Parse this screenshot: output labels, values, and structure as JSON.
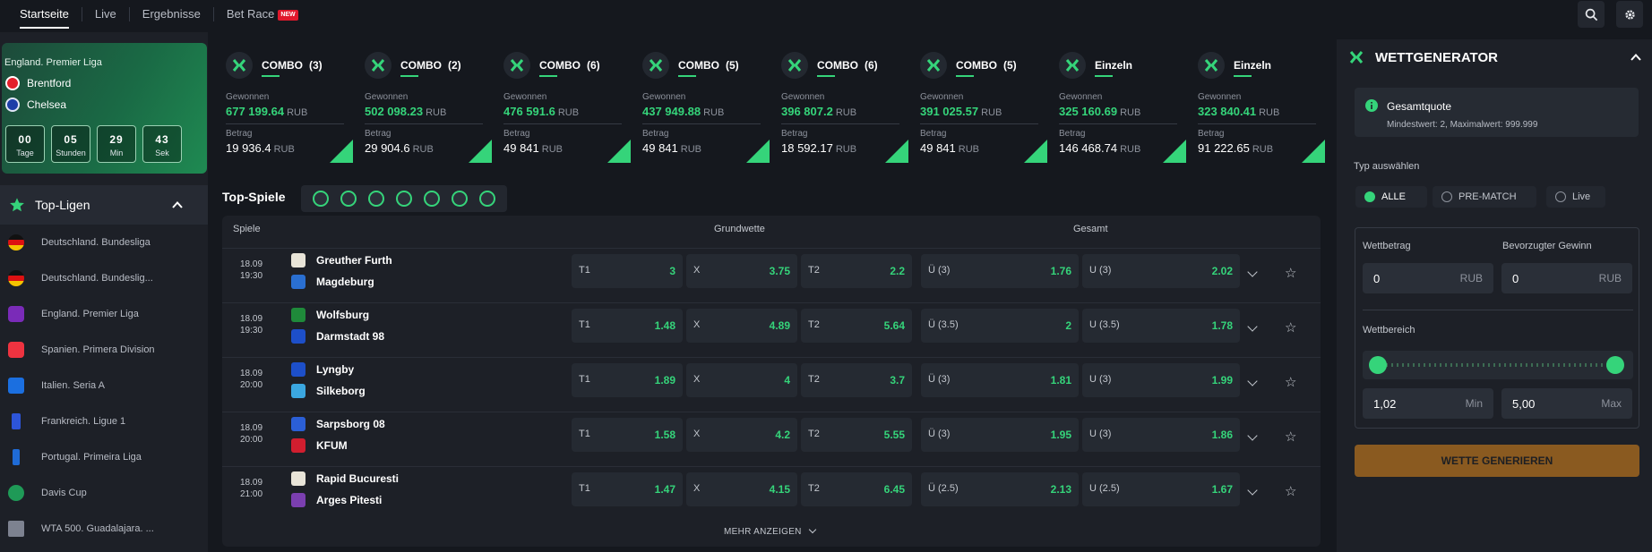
{
  "nav": {
    "items": [
      "Startseite",
      "Live",
      "Ergebnisse",
      "Bet Race"
    ],
    "badge": "NEW"
  },
  "featured": {
    "league": "England. Premier Liga",
    "team1": "Brentford",
    "team2": "Chelsea",
    "countdown": [
      {
        "num": "00",
        "label": "Tage"
      },
      {
        "num": "05",
        "label": "Stunden"
      },
      {
        "num": "29",
        "label": "Min"
      },
      {
        "num": "43",
        "label": "Sek"
      }
    ]
  },
  "topligen": {
    "title": "Top-Ligen",
    "leagues": [
      "Deutschland. Bundesliga",
      "Deutschland. Bundeslig...",
      "England. Premier Liga",
      "Spanien. Primera Division",
      "Italien. Seria A",
      "Frankreich. Ligue 1",
      "Portugal. Primeira Liga",
      "Davis Cup",
      "WTA 500. Guadalajara. ..."
    ]
  },
  "combos": [
    {
      "title": "COMBO",
      "count": "(3)",
      "won_label": "Gewonnen",
      "won": "677 199.64",
      "bet_label": "Betrag",
      "bet": "19 936.4",
      "cur": "RUB"
    },
    {
      "title": "COMBO",
      "count": "(2)",
      "won_label": "Gewonnen",
      "won": "502 098.23",
      "bet_label": "Betrag",
      "bet": "29 904.6",
      "cur": "RUB"
    },
    {
      "title": "COMBO",
      "count": "(6)",
      "won_label": "Gewonnen",
      "won": "476 591.6",
      "bet_label": "Betrag",
      "bet": "49 841",
      "cur": "RUB"
    },
    {
      "title": "COMBO",
      "count": "(5)",
      "won_label": "Gewonnen",
      "won": "437 949.88",
      "bet_label": "Betrag",
      "bet": "49 841",
      "cur": "RUB"
    },
    {
      "title": "COMBO",
      "count": "(6)",
      "won_label": "Gewonnen",
      "won": "396 807.2",
      "bet_label": "Betrag",
      "bet": "18 592.17",
      "cur": "RUB"
    },
    {
      "title": "COMBO",
      "count": "(5)",
      "won_label": "Gewonnen",
      "won": "391 025.57",
      "bet_label": "Betrag",
      "bet": "49 841",
      "cur": "RUB"
    },
    {
      "title": "Einzeln",
      "count": "",
      "won_label": "Gewonnen",
      "won": "325 160.69",
      "bet_label": "Betrag",
      "bet": "146 468.74",
      "cur": "RUB"
    },
    {
      "title": "Einzeln",
      "count": "",
      "won_label": "Gewonnen",
      "won": "323 840.41",
      "bet_label": "Betrag",
      "bet": "91 222.65",
      "cur": "RUB"
    }
  ],
  "topspiele": {
    "title": "Top-Spiele",
    "headers": {
      "spiele": "Spiele",
      "grundwette": "Grundwette",
      "gesamt": "Gesamt"
    },
    "matches": [
      {
        "date": "18.09",
        "time": "19:30",
        "team1": "Greuther Furth",
        "team2": "Magdeburg",
        "odds": [
          [
            "T1",
            "3"
          ],
          [
            "X",
            "3.75"
          ],
          [
            "T2",
            "2.2"
          ],
          [
            "Ü (3)",
            "1.76"
          ],
          [
            "U (3)",
            "2.02"
          ]
        ]
      },
      {
        "date": "18.09",
        "time": "19:30",
        "team1": "Wolfsburg",
        "team2": "Darmstadt 98",
        "odds": [
          [
            "T1",
            "1.48"
          ],
          [
            "X",
            "4.89"
          ],
          [
            "T2",
            "5.64"
          ],
          [
            "Ü (3.5)",
            "2"
          ],
          [
            "U (3.5)",
            "1.78"
          ]
        ]
      },
      {
        "date": "18.09",
        "time": "20:00",
        "team1": "Lyngby",
        "team2": "Silkeborg",
        "odds": [
          [
            "T1",
            "1.89"
          ],
          [
            "X",
            "4"
          ],
          [
            "T2",
            "3.7"
          ],
          [
            "Ü (3)",
            "1.81"
          ],
          [
            "U (3)",
            "1.99"
          ]
        ]
      },
      {
        "date": "18.09",
        "time": "20:00",
        "team1": "Sarpsborg 08",
        "team2": "KFUM",
        "odds": [
          [
            "T1",
            "1.58"
          ],
          [
            "X",
            "4.2"
          ],
          [
            "T2",
            "5.55"
          ],
          [
            "Ü (3)",
            "1.95"
          ],
          [
            "U (3)",
            "1.86"
          ]
        ]
      },
      {
        "date": "18.09",
        "time": "21:00",
        "team1": "Rapid Bucuresti",
        "team2": "Arges Pitesti",
        "odds": [
          [
            "T1",
            "1.47"
          ],
          [
            "X",
            "4.15"
          ],
          [
            "T2",
            "6.45"
          ],
          [
            "Ü (2.5)",
            "2.13"
          ],
          [
            "U (2.5)",
            "1.67"
          ]
        ]
      }
    ],
    "more": "MEHR ANZEIGEN"
  },
  "generator": {
    "title": "WETTGENERATOR",
    "info_title": "Gesamtquote",
    "info_sub": "Mindestwert: 2, Maximalwert: 999.999",
    "type_label": "Typ auswählen",
    "types": [
      "ALLE",
      "PRE-MATCH",
      "Live"
    ],
    "wettbetrag_label": "Wettbetrag",
    "gewinn_label": "Bevorzugter Gewinn",
    "wettbetrag_value": "0",
    "gewinn_value": "0",
    "currency": "RUB",
    "range_label": "Wettbereich",
    "min_value": "1,02",
    "min_label": "Min",
    "max_value": "5,00",
    "max_label": "Max",
    "generate": "WETTE GENERIEREN"
  },
  "colors": {
    "accent": "#35d47a",
    "background": "#15181e",
    "panel": "#1d2027",
    "button": "#8a5a20"
  }
}
